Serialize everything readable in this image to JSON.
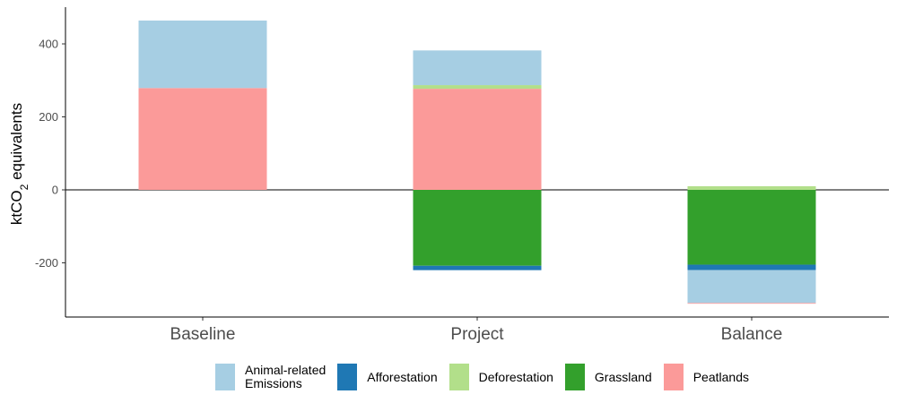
{
  "chart_data": {
    "type": "bar",
    "stacked": true,
    "title": "",
    "xlabel": "",
    "ylabel": "ktCO₂ equivalents",
    "ylabel_main": "ktCO",
    "ylabel_sub": "2",
    "ylabel_rest": " equivalents",
    "ylim": [
      -345,
      500
    ],
    "yticks": [
      -200,
      0,
      200,
      400
    ],
    "ytick_labels": [
      "-200",
      "0",
      "200",
      "400"
    ],
    "categories": [
      "Baseline",
      "Project",
      "Balance"
    ],
    "legend_position": "bottom",
    "series": [
      {
        "name": "Animal-related\nEmissions",
        "color": "#a6cee3",
        "values": [
          185,
          95,
          -90
        ]
      },
      {
        "name": "Afforestation",
        "color": "#1f78b4",
        "values": [
          0,
          -12,
          -15
        ]
      },
      {
        "name": "Deforestation",
        "color": "#b2df8a",
        "values": [
          0,
          10,
          10
        ]
      },
      {
        "name": "Grassland",
        "color": "#33a02c",
        "values": [
          0,
          -208,
          -205
        ]
      },
      {
        "name": "Peatlands",
        "color": "#fb9a99",
        "values": [
          279,
          277,
          -2
        ]
      }
    ],
    "stack_order_positive": [
      4,
      2,
      0
    ],
    "stack_order_negative": [
      3,
      1,
      0,
      4
    ]
  }
}
